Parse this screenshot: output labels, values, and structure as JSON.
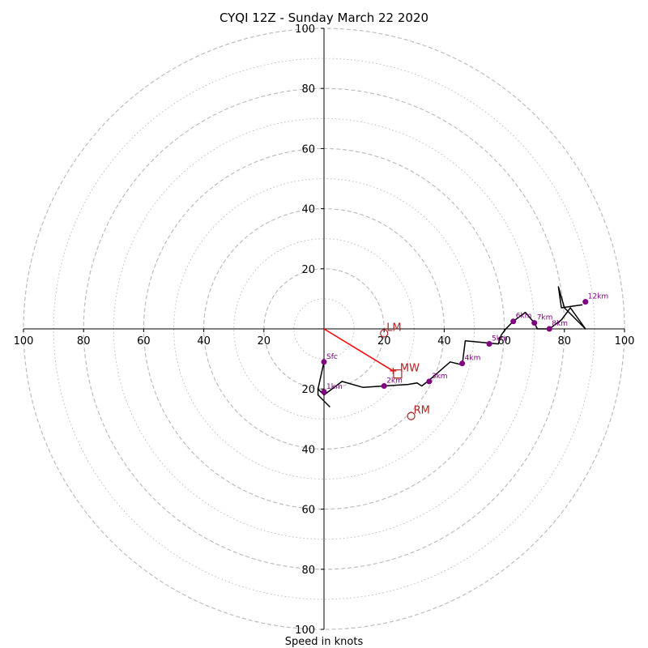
{
  "chart_data": {
    "type": "hodograph",
    "title": "CYQI 12Z - Sunday March 22 2020",
    "xlabel": "Speed in knots",
    "ring_major_knots": [
      20,
      40,
      60,
      80,
      100
    ],
    "ring_minor_knots": [
      10,
      30,
      50,
      70,
      90
    ],
    "axis_range": [
      -100,
      100
    ],
    "tick_labels_x": [
      {
        "v": -100,
        "t": "100"
      },
      {
        "v": -80,
        "t": "80"
      },
      {
        "v": -60,
        "t": "60"
      },
      {
        "v": -40,
        "t": "40"
      },
      {
        "v": -20,
        "t": "20"
      },
      {
        "v": 20,
        "t": "20"
      },
      {
        "v": 40,
        "t": "40"
      },
      {
        "v": 60,
        "t": "60"
      },
      {
        "v": 80,
        "t": "80"
      },
      {
        "v": 100,
        "t": "100"
      }
    ],
    "tick_labels_y": [
      {
        "v": 100,
        "t": "100"
      },
      {
        "v": 80,
        "t": "80"
      },
      {
        "v": 60,
        "t": "60"
      },
      {
        "v": 40,
        "t": "40"
      },
      {
        "v": 20,
        "t": "20"
      },
      {
        "v": -20,
        "t": "20"
      },
      {
        "v": -40,
        "t": "40"
      },
      {
        "v": -60,
        "t": "60"
      },
      {
        "v": -80,
        "t": "80"
      },
      {
        "v": -100,
        "t": "100"
      }
    ],
    "trace_line": {
      "color": "#000000",
      "points": [
        [
          2,
          -26
        ],
        [
          -2,
          -22
        ],
        [
          -2,
          -20
        ],
        [
          0,
          -11
        ],
        [
          0,
          -11
        ],
        [
          -2,
          -20
        ],
        [
          0,
          -22
        ],
        [
          6,
          -17.5
        ],
        [
          13,
          -19.5
        ],
        [
          20,
          -19
        ],
        [
          28,
          -18.5
        ],
        [
          31,
          -18
        ],
        [
          32.5,
          -19
        ],
        [
          34.5,
          -17.5
        ],
        [
          42,
          -11
        ],
        [
          46,
          -12
        ],
        [
          47,
          -4
        ],
        [
          58,
          -5
        ],
        [
          59,
          -2
        ],
        [
          60.5,
          0
        ],
        [
          63,
          2.5
        ],
        [
          67,
          5.5
        ],
        [
          70,
          2
        ],
        [
          71,
          0
        ],
        [
          75,
          0
        ],
        [
          79,
          3
        ],
        [
          82,
          7
        ],
        [
          87,
          0
        ],
        [
          80,
          7
        ],
        [
          78,
          14
        ],
        [
          79,
          7
        ],
        [
          86,
          8
        ]
      ]
    },
    "height_markers": [
      {
        "label": "Sfc",
        "u": 0,
        "v": -11
      },
      {
        "label": "1km",
        "u": 0,
        "v": -21
      },
      {
        "label": "2km",
        "u": 20,
        "v": -19
      },
      {
        "label": "3km",
        "u": 35,
        "v": -17.5
      },
      {
        "label": "4km",
        "u": 46,
        "v": -11.5
      },
      {
        "label": "5km",
        "u": 55,
        "v": -5
      },
      {
        "label": "6km",
        "u": 63,
        "v": 2.5
      },
      {
        "label": "7km",
        "u": 70,
        "v": 2
      },
      {
        "label": "8km",
        "u": 75,
        "v": 0
      },
      {
        "label": "12km",
        "u": 87,
        "v": 9
      }
    ],
    "motion_markers": [
      {
        "label": "LM",
        "u": 20,
        "v": -1.5,
        "shape": "circle"
      },
      {
        "label": "MW",
        "u": 24.5,
        "v": -15,
        "shape": "square"
      },
      {
        "label": "RM",
        "u": 29,
        "v": -29,
        "shape": "circle"
      }
    ],
    "shear_vector": {
      "color": "#ff0000",
      "from": [
        0,
        0
      ],
      "to": [
        23,
        -14
      ]
    },
    "colors": {
      "ring": "#bdbdbd",
      "marker": "#800080",
      "motion": "#b22222",
      "shear": "#ff0000"
    }
  }
}
